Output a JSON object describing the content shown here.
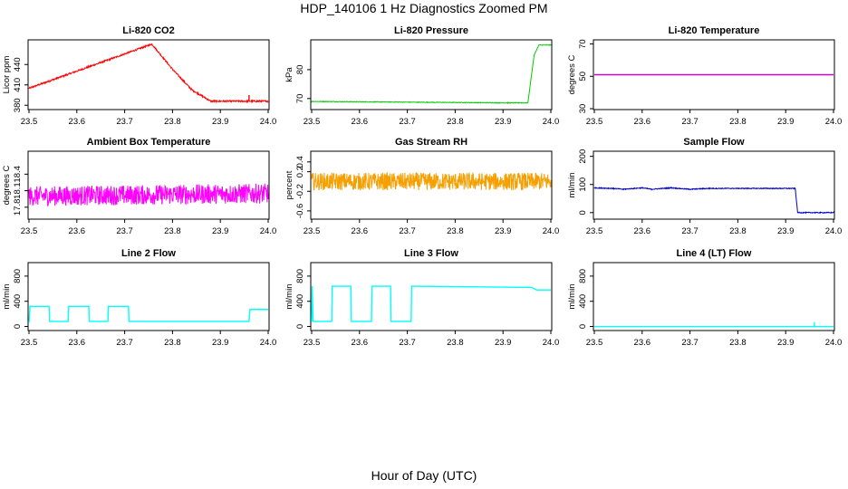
{
  "figure": {
    "title": "HDP_140106  1 Hz Diagnostics Zoomed PM",
    "xlabel": "Hour of Day (UTC)"
  },
  "chart_data": [
    {
      "type": "line",
      "title": "Li-820 CO2",
      "xlabel": "",
      "ylabel": "Licor ppm",
      "xlim": [
        23.5,
        24.0
      ],
      "ylim": [
        375,
        475
      ],
      "yticks": [
        380,
        410,
        440
      ],
      "xticks": [
        23.5,
        23.6,
        23.7,
        23.8,
        23.9,
        24.0
      ],
      "color": "#ff0000",
      "noise": 1.2,
      "steps": [
        [
          23.5,
          405
        ],
        [
          23.757,
          470
        ],
        [
          23.8,
          433
        ],
        [
          23.84,
          403
        ],
        [
          23.88,
          386
        ],
        [
          24.0,
          386
        ]
      ],
      "spikes": [
        [
          23.96,
          395
        ]
      ]
    },
    {
      "type": "line",
      "title": "Li-820 Pressure",
      "xlabel": "",
      "ylabel": "kPa",
      "xlim": [
        23.5,
        24.0
      ],
      "ylim": [
        66.5,
        90
      ],
      "yticks": [
        70,
        80
      ],
      "xticks": [
        23.5,
        23.6,
        23.7,
        23.8,
        23.9,
        24.0
      ],
      "color": "#00cc00",
      "noise": 0.1,
      "steps": [
        [
          23.5,
          69
        ],
        [
          23.91,
          68.5
        ],
        [
          23.952,
          68.5
        ],
        [
          23.965,
          85
        ],
        [
          23.975,
          88.5
        ],
        [
          24.0,
          88.5
        ]
      ]
    },
    {
      "type": "line",
      "title": "Li-820 Temperature",
      "xlabel": "",
      "ylabel": "degrees C",
      "xlim": [
        23.5,
        24.0
      ],
      "ylim": [
        30,
        72
      ],
      "yticks": [
        30,
        50,
        70
      ],
      "xticks": [
        23.5,
        23.6,
        23.7,
        23.8,
        23.9,
        24.0
      ],
      "color": "#cc00cc",
      "noise": 0,
      "steps": [
        [
          23.5,
          51
        ],
        [
          24.0,
          51
        ]
      ]
    },
    {
      "type": "line",
      "title": "Ambient Box Temperature",
      "xlabel": "",
      "ylabel": "degrees C",
      "xlim": [
        23.5,
        24.0
      ],
      "ylim": [
        17.6,
        18.8
      ],
      "yticks": [
        17.8,
        18.1,
        18.4
      ],
      "xticks": [
        23.5,
        23.6,
        23.7,
        23.8,
        23.9,
        24.0
      ],
      "color": "#ff00ff",
      "noise": 0.18,
      "steps": [
        [
          23.5,
          18.0
        ],
        [
          24.0,
          18.05
        ]
      ]
    },
    {
      "type": "line",
      "title": "Gas Stream RH",
      "xlabel": "",
      "ylabel": "percent",
      "xlim": [
        23.5,
        24.0
      ],
      "ylim": [
        -0.75,
        0.6
      ],
      "yticks": [
        -0.6,
        -0.2,
        0.2,
        0.4
      ],
      "xticks": [
        23.5,
        23.6,
        23.7,
        23.8,
        23.9,
        24.0
      ],
      "color": "#f59f00",
      "noise": 0.18,
      "steps": [
        [
          23.5,
          0.0
        ],
        [
          24.0,
          0.0
        ]
      ]
    },
    {
      "type": "line",
      "title": "Sample Flow",
      "xlabel": "",
      "ylabel": "ml/min",
      "xlim": [
        23.5,
        24.0
      ],
      "ylim": [
        -20,
        215
      ],
      "yticks": [
        0,
        100,
        200
      ],
      "xticks": [
        23.5,
        23.6,
        23.7,
        23.8,
        23.9,
        24.0
      ],
      "color": "#0000cc",
      "noise": 1.5,
      "steps": [
        [
          23.5,
          88
        ],
        [
          23.54,
          86
        ],
        [
          23.56,
          83
        ],
        [
          23.6,
          88
        ],
        [
          23.62,
          83
        ],
        [
          23.66,
          88
        ],
        [
          23.7,
          83
        ],
        [
          23.74,
          86
        ],
        [
          23.92,
          86
        ],
        [
          23.925,
          0
        ],
        [
          24.0,
          0
        ]
      ]
    },
    {
      "type": "line",
      "title": "Line 2 Flow",
      "xlabel": "",
      "ylabel": "ml/min",
      "xlim": [
        23.5,
        24.0
      ],
      "ylim": [
        -50,
        1000
      ],
      "yticks": [
        0,
        400,
        800
      ],
      "xticks": [
        23.5,
        23.6,
        23.7,
        23.8,
        23.9,
        24.0
      ],
      "color": "#00ffff",
      "noise": 0,
      "steps": [
        [
          23.5,
          60
        ],
        [
          23.502,
          320
        ],
        [
          23.542,
          320
        ],
        [
          23.543,
          80
        ],
        [
          23.582,
          80
        ],
        [
          23.583,
          320
        ],
        [
          23.625,
          320
        ],
        [
          23.626,
          80
        ],
        [
          23.665,
          80
        ],
        [
          23.666,
          320
        ],
        [
          23.708,
          320
        ],
        [
          23.709,
          80
        ],
        [
          23.96,
          80
        ],
        [
          23.962,
          270
        ],
        [
          24.0,
          270
        ]
      ]
    },
    {
      "type": "line",
      "title": "Line 3 Flow",
      "xlabel": "",
      "ylabel": "ml/min",
      "xlim": [
        23.5,
        24.0
      ],
      "ylim": [
        -50,
        1000
      ],
      "yticks": [
        0,
        400,
        800
      ],
      "xticks": [
        23.5,
        23.6,
        23.7,
        23.8,
        23.9,
        24.0
      ],
      "color": "#00ffff",
      "noise": 0,
      "steps": [
        [
          23.5,
          80
        ],
        [
          23.501,
          640
        ],
        [
          23.503,
          80
        ],
        [
          23.542,
          80
        ],
        [
          23.543,
          640
        ],
        [
          23.582,
          640
        ],
        [
          23.583,
          80
        ],
        [
          23.625,
          80
        ],
        [
          23.626,
          640
        ],
        [
          23.665,
          640
        ],
        [
          23.666,
          80
        ],
        [
          23.708,
          80
        ],
        [
          23.709,
          640
        ],
        [
          23.96,
          620
        ],
        [
          23.97,
          580
        ],
        [
          24.0,
          580
        ]
      ]
    },
    {
      "type": "line",
      "title": "Line 4 (LT) Flow",
      "xlabel": "",
      "ylabel": "ml/min",
      "xlim": [
        23.5,
        24.0
      ],
      "ylim": [
        -50,
        1000
      ],
      "yticks": [
        0,
        400,
        800
      ],
      "xticks": [
        23.5,
        23.6,
        23.7,
        23.8,
        23.9,
        24.0
      ],
      "color": "#00ffff",
      "noise": 0,
      "steps": [
        [
          23.5,
          0
        ],
        [
          23.96,
          0
        ],
        [
          24.0,
          0
        ]
      ],
      "spikes": [
        [
          23.96,
          70
        ]
      ]
    }
  ]
}
